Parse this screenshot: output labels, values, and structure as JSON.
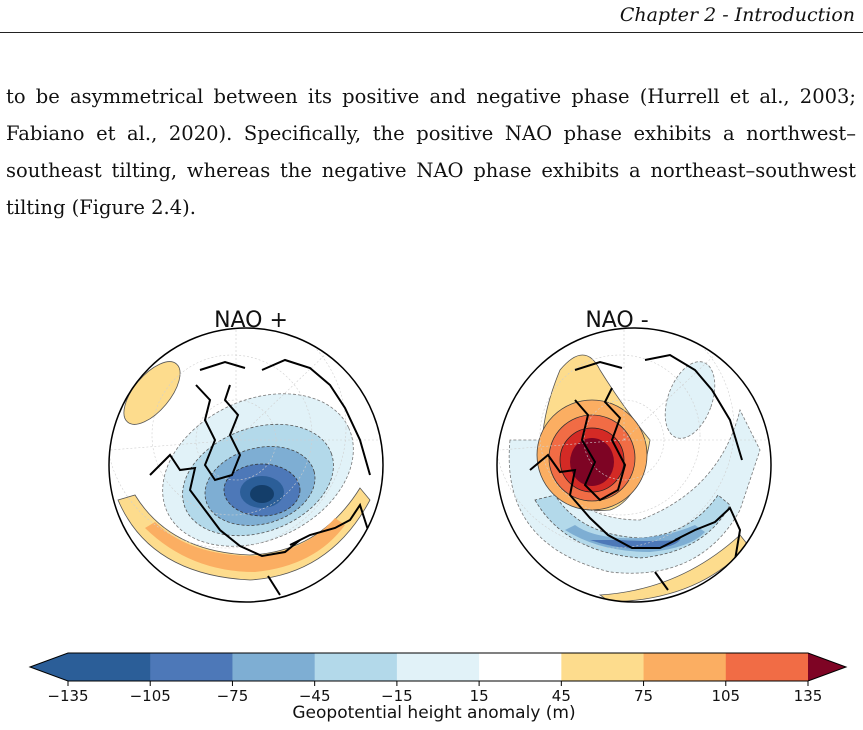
{
  "header": {
    "chapter": "Chapter 2 - Introduction"
  },
  "paragraph": {
    "lines": [
      "to be asymmetrical between its positive and negative phase (Hurrell et al., 2003;",
      "Fabiano et al., 2020).  Specifically, the positive NAO phase exhibits a northwest–",
      "southeast tilting, whereas the negative NAO phase exhibits a northeast–southwest",
      "tilting (Figure 2.4)."
    ]
  },
  "figure": {
    "maps": [
      {
        "title": "NAO +"
      },
      {
        "title": "NAO -"
      }
    ],
    "colorbar": {
      "ticks": [
        "−135",
        "−105",
        "−75",
        "−45",
        "−15",
        "15",
        "45",
        "75",
        "105",
        "135"
      ],
      "colors": [
        "#2b5e98",
        "#4d78b8",
        "#7eaed3",
        "#b3d9ea",
        "#e1f2f8",
        "#ffffff",
        "#fddc8d",
        "#fbae62",
        "#f16c45",
        "#d42a25",
        "#7e0424"
      ],
      "label": "Geopotential height anomaly (m)"
    }
  }
}
